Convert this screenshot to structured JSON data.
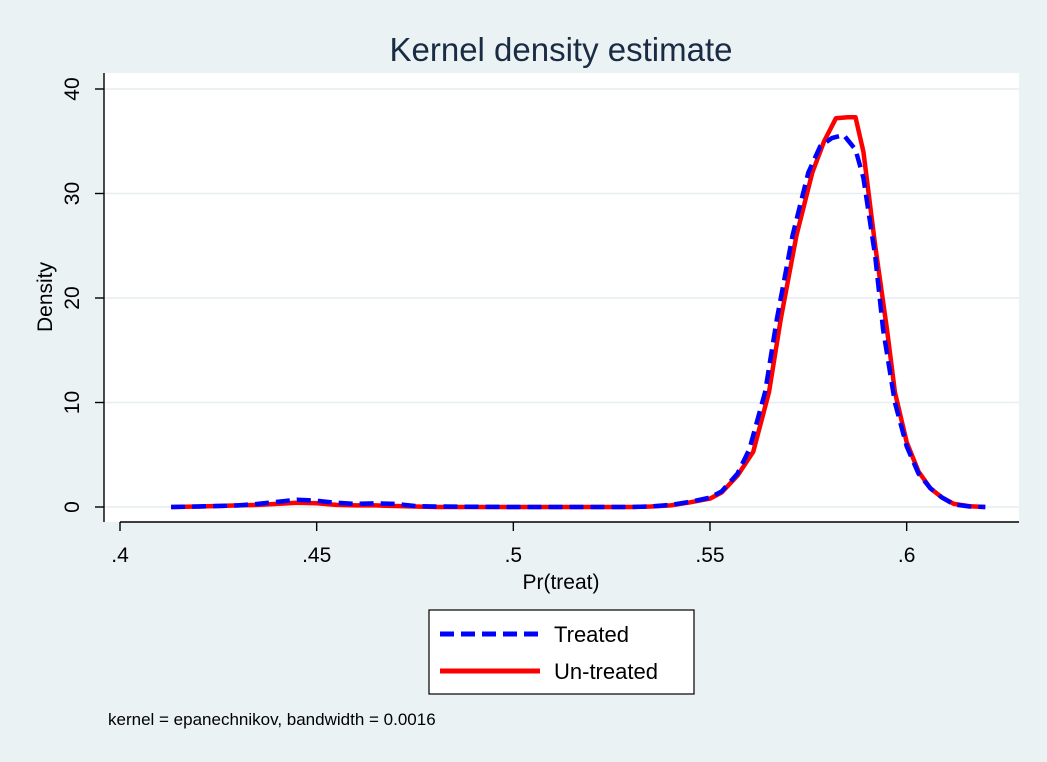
{
  "chart_data": {
    "type": "line",
    "title": "Kernel density estimate",
    "xlabel": "Pr(treat)",
    "ylabel": "Density",
    "xlim": [
      0.4,
      0.625
    ],
    "ylim": [
      0,
      41
    ],
    "x_ticks": [
      0.4,
      0.45,
      0.5,
      0.55,
      0.6
    ],
    "x_tick_labels": [
      ".4",
      ".45",
      ".5",
      ".55",
      ".6"
    ],
    "y_ticks": [
      0,
      10,
      20,
      30,
      40
    ],
    "y_tick_labels": [
      "0",
      "10",
      "20",
      "30",
      "40"
    ],
    "grid": true,
    "legend_position": "bottom",
    "note": "kernel = epanechnikov, bandwidth = 0.0016",
    "series": [
      {
        "name": "Treated",
        "color": "#0000ff",
        "style": "dashed",
        "points": [
          [
            0.413,
            0
          ],
          [
            0.42,
            0.05
          ],
          [
            0.425,
            0.1
          ],
          [
            0.43,
            0.15
          ],
          [
            0.435,
            0.3
          ],
          [
            0.44,
            0.5
          ],
          [
            0.445,
            0.7
          ],
          [
            0.45,
            0.6
          ],
          [
            0.455,
            0.4
          ],
          [
            0.46,
            0.3
          ],
          [
            0.465,
            0.35
          ],
          [
            0.47,
            0.3
          ],
          [
            0.475,
            0.1
          ],
          [
            0.48,
            0.05
          ],
          [
            0.5,
            0.0
          ],
          [
            0.53,
            0.0
          ],
          [
            0.535,
            0.05
          ],
          [
            0.54,
            0.2
          ],
          [
            0.545,
            0.5
          ],
          [
            0.55,
            0.9
          ],
          [
            0.553,
            1.5
          ],
          [
            0.557,
            3.2
          ],
          [
            0.56,
            5.5
          ],
          [
            0.564,
            11
          ],
          [
            0.567,
            18
          ],
          [
            0.571,
            26
          ],
          [
            0.575,
            32
          ],
          [
            0.578,
            34.5
          ],
          [
            0.581,
            35.3
          ],
          [
            0.584,
            35.6
          ],
          [
            0.587,
            34.2
          ],
          [
            0.589,
            31.5
          ],
          [
            0.592,
            24
          ],
          [
            0.594,
            17
          ],
          [
            0.597,
            10
          ],
          [
            0.6,
            5.8
          ],
          [
            0.603,
            3.2
          ],
          [
            0.606,
            1.8
          ],
          [
            0.609,
            0.9
          ],
          [
            0.612,
            0.25
          ],
          [
            0.616,
            0.05
          ],
          [
            0.62,
            0
          ]
        ]
      },
      {
        "name": "Un-treated",
        "color": "#ff0000",
        "style": "solid",
        "points": [
          [
            0.413,
            0
          ],
          [
            0.42,
            0.05
          ],
          [
            0.425,
            0.1
          ],
          [
            0.43,
            0.15
          ],
          [
            0.435,
            0.2
          ],
          [
            0.44,
            0.3
          ],
          [
            0.445,
            0.4
          ],
          [
            0.45,
            0.35
          ],
          [
            0.455,
            0.2
          ],
          [
            0.46,
            0.15
          ],
          [
            0.465,
            0.15
          ],
          [
            0.47,
            0.1
          ],
          [
            0.475,
            0.05
          ],
          [
            0.48,
            0.0
          ],
          [
            0.5,
            0.0
          ],
          [
            0.53,
            0.0
          ],
          [
            0.535,
            0.05
          ],
          [
            0.54,
            0.15
          ],
          [
            0.545,
            0.45
          ],
          [
            0.55,
            0.8
          ],
          [
            0.553,
            1.4
          ],
          [
            0.557,
            3.0
          ],
          [
            0.561,
            5.3
          ],
          [
            0.565,
            11
          ],
          [
            0.568,
            18
          ],
          [
            0.572,
            26
          ],
          [
            0.576,
            32
          ],
          [
            0.579,
            35
          ],
          [
            0.582,
            37.2
          ],
          [
            0.585,
            37.3
          ],
          [
            0.587,
            37.3
          ],
          [
            0.589,
            34
          ],
          [
            0.592,
            25
          ],
          [
            0.595,
            17
          ],
          [
            0.597,
            11
          ],
          [
            0.6,
            6.2
          ],
          [
            0.603,
            3.4
          ],
          [
            0.606,
            1.8
          ],
          [
            0.609,
            0.9
          ],
          [
            0.612,
            0.3
          ],
          [
            0.616,
            0.08
          ],
          [
            0.62,
            0
          ]
        ]
      }
    ]
  }
}
